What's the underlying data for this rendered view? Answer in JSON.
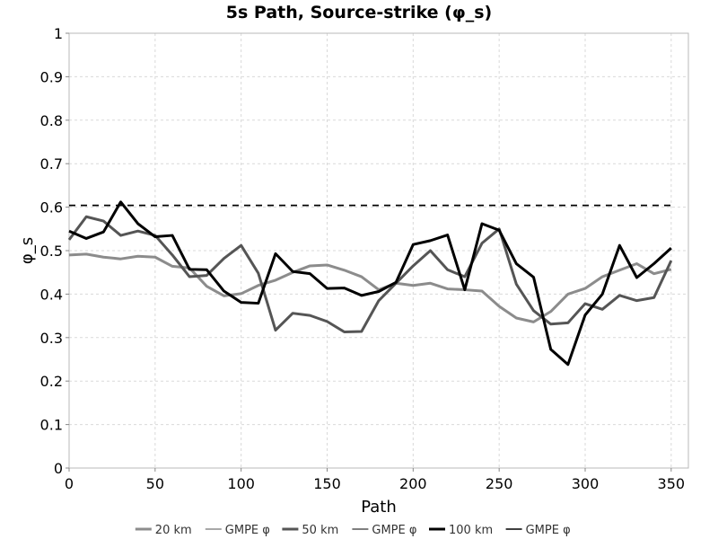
{
  "chart_data": {
    "type": "line",
    "title": "5s Path, Source-strike (φ_s)",
    "xlabel": "Path",
    "ylabel": "φ_s",
    "xlim": [
      0,
      360
    ],
    "ylim": [
      0,
      1
    ],
    "xticks": [
      0,
      50,
      100,
      150,
      200,
      250,
      300,
      350
    ],
    "yticks": [
      0,
      0.1,
      0.2,
      0.3,
      0.4,
      0.5,
      0.6,
      0.7,
      0.8,
      0.9,
      1
    ],
    "grid": true,
    "legend_position": "bottom",
    "x": [
      0,
      10,
      20,
      30,
      40,
      50,
      60,
      70,
      80,
      90,
      100,
      110,
      120,
      130,
      140,
      150,
      160,
      170,
      180,
      190,
      200,
      210,
      220,
      230,
      240,
      250,
      260,
      270,
      280,
      290,
      300,
      310,
      320,
      330,
      340,
      350
    ],
    "series": [
      {
        "name": "20 km",
        "color": "#8c8c8c",
        "style": "solid",
        "values": [
          0.49,
          0.492,
          0.485,
          0.481,
          0.487,
          0.485,
          0.464,
          0.46,
          0.418,
          0.396,
          0.401,
          0.42,
          0.432,
          0.45,
          0.465,
          0.467,
          0.455,
          0.44,
          0.41,
          0.425,
          0.42,
          0.425,
          0.412,
          0.41,
          0.407,
          0.372,
          0.345,
          0.336,
          0.36,
          0.4,
          0.413,
          0.44,
          0.455,
          0.47,
          0.447,
          0.457
        ]
      },
      {
        "name": "GMPE φ",
        "color": "#8c8c8c",
        "style": "dashed",
        "values": [
          0.604,
          0.604,
          0.604,
          0.604,
          0.604,
          0.604,
          0.604,
          0.604,
          0.604,
          0.604,
          0.604,
          0.604,
          0.604,
          0.604,
          0.604,
          0.604,
          0.604,
          0.604,
          0.604,
          0.604,
          0.604,
          0.604,
          0.604,
          0.604,
          0.604,
          0.604,
          0.604,
          0.604,
          0.604,
          0.604,
          0.604,
          0.604,
          0.604,
          0.604,
          0.604,
          0.604
        ]
      },
      {
        "name": "50 km",
        "color": "#555555",
        "style": "solid",
        "values": [
          0.525,
          0.578,
          0.568,
          0.535,
          0.545,
          0.535,
          0.49,
          0.44,
          0.443,
          0.482,
          0.512,
          0.448,
          0.317,
          0.356,
          0.351,
          0.337,
          0.313,
          0.314,
          0.385,
          0.425,
          0.465,
          0.5,
          0.456,
          0.44,
          0.517,
          0.55,
          0.423,
          0.362,
          0.331,
          0.334,
          0.378,
          0.365,
          0.397,
          0.385,
          0.392,
          0.477
        ]
      },
      {
        "name": "GMPE φ",
        "color": "#555555",
        "style": "dashed",
        "values": [
          0.604,
          0.604,
          0.604,
          0.604,
          0.604,
          0.604,
          0.604,
          0.604,
          0.604,
          0.604,
          0.604,
          0.604,
          0.604,
          0.604,
          0.604,
          0.604,
          0.604,
          0.604,
          0.604,
          0.604,
          0.604,
          0.604,
          0.604,
          0.604,
          0.604,
          0.604,
          0.604,
          0.604,
          0.604,
          0.604,
          0.604,
          0.604,
          0.604,
          0.604,
          0.604,
          0.604
        ]
      },
      {
        "name": "100 km",
        "color": "#000000",
        "style": "solid",
        "values": [
          0.545,
          0.528,
          0.543,
          0.612,
          0.562,
          0.532,
          0.535,
          0.457,
          0.456,
          0.407,
          0.381,
          0.379,
          0.493,
          0.452,
          0.447,
          0.413,
          0.414,
          0.397,
          0.406,
          0.427,
          0.514,
          0.523,
          0.536,
          0.41,
          0.562,
          0.547,
          0.47,
          0.439,
          0.273,
          0.238,
          0.352,
          0.4,
          0.512,
          0.438,
          0.47,
          0.506
        ]
      },
      {
        "name": "GMPE φ",
        "color": "#000000",
        "style": "dashed",
        "values": [
          0.604,
          0.604,
          0.604,
          0.604,
          0.604,
          0.604,
          0.604,
          0.604,
          0.604,
          0.604,
          0.604,
          0.604,
          0.604,
          0.604,
          0.604,
          0.604,
          0.604,
          0.604,
          0.604,
          0.604,
          0.604,
          0.604,
          0.604,
          0.604,
          0.604,
          0.604,
          0.604,
          0.604,
          0.604,
          0.604,
          0.604,
          0.604,
          0.604,
          0.604,
          0.604,
          0.604
        ]
      }
    ]
  }
}
